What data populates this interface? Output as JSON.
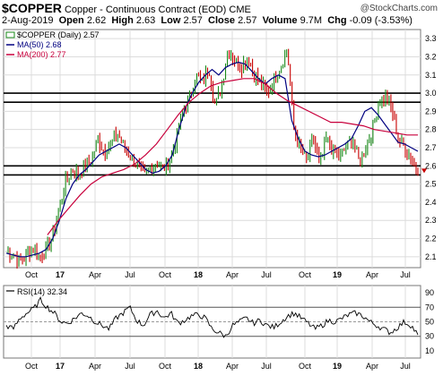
{
  "header": {
    "symbol": "$COPPER",
    "name": "Copper - Continuous Contract (EOD)",
    "exchange": "CME",
    "date": "2-Aug-2019",
    "open_label": "Open",
    "open": "2.62",
    "high_label": "High",
    "high": "2.63",
    "low_label": "Low",
    "low": "2.57",
    "close_label": "Close",
    "close": "2.57",
    "volume_label": "Volume",
    "volume": "9.7M",
    "chg_label": "Chg",
    "chg": "-0.09 (-3.53%)",
    "chg_arrow": "▼"
  },
  "brand": "@StockCharts.com",
  "colors": {
    "price": "#1a8a1a",
    "down": "#c80000",
    "ma50": "#000080",
    "ma200": "#c8003c",
    "grid": "#dcdcdc",
    "hline": "#000000"
  },
  "chart_data": [
    {
      "type": "line",
      "panel": "price",
      "legend": [
        "$COPPER (Daily) 2.57",
        "MA(50) 2.68",
        "MA(200) 2.77"
      ],
      "legend_placement": "top-left",
      "y_axis_side": "right",
      "ylim": [
        2.04,
        3.35
      ],
      "yticks": [
        2.1,
        2.2,
        2.3,
        2.4,
        2.5,
        2.6,
        2.7,
        2.8,
        2.9,
        3.0,
        3.1,
        3.2,
        3.3
      ],
      "x_tick_labels": [
        "Oct",
        "17",
        "Apr",
        "Jul",
        "Oct",
        "18",
        "Apr",
        "Jul",
        "Oct",
        "19",
        "Apr",
        "Jul"
      ],
      "bold_x_ticks": [
        "17",
        "18",
        "19"
      ],
      "grid": true,
      "horizontal_lines": [
        3.0,
        2.95,
        2.6,
        2.55
      ],
      "series": [
        {
          "name": "$COPPER (Daily)",
          "style": "ohlc",
          "values": [
            2.13,
            2.12,
            2.08,
            2.1,
            2.15,
            2.1,
            2.13,
            2.2,
            2.35,
            2.5,
            2.58,
            2.55,
            2.6,
            2.63,
            2.75,
            2.68,
            2.72,
            2.78,
            2.7,
            2.65,
            2.6,
            2.55,
            2.58,
            2.62,
            2.58,
            2.62,
            2.75,
            2.9,
            2.95,
            3.1,
            3.05,
            3.15,
            2.92,
            3.05,
            3.25,
            3.18,
            3.15,
            3.2,
            3.1,
            3.05,
            3.0,
            3.08,
            3.15,
            3.25,
            2.8,
            2.7,
            2.62,
            2.75,
            2.6,
            2.75,
            2.68,
            2.65,
            2.7,
            2.75,
            2.62,
            2.7,
            2.8,
            2.95,
            2.98,
            2.9,
            2.75,
            2.7,
            2.65,
            2.57
          ]
        },
        {
          "name": "MA(50)",
          "values": [
            2.12,
            2.11,
            2.1,
            2.1,
            2.11,
            2.12,
            2.14,
            2.2,
            2.3,
            2.42,
            2.5,
            2.55,
            2.58,
            2.62,
            2.66,
            2.68,
            2.7,
            2.72,
            2.7,
            2.66,
            2.62,
            2.58,
            2.56,
            2.57,
            2.6,
            2.66,
            2.8,
            2.92,
            3.0,
            3.06,
            3.1,
            3.13,
            3.1,
            3.14,
            3.16,
            3.17,
            3.16,
            3.12,
            3.08,
            3.05,
            3.08,
            3.1,
            3.08,
            2.85,
            2.75,
            2.68,
            2.66,
            2.65,
            2.66,
            2.68,
            2.7,
            2.72,
            2.75,
            2.82,
            2.9,
            2.92,
            2.88,
            2.83,
            2.78,
            2.73,
            2.72,
            2.7,
            2.68
          ]
        },
        {
          "name": "MA(200)",
          "values": [
            2.22,
            2.3,
            2.37,
            2.44,
            2.5,
            2.54,
            2.56,
            2.58,
            2.61,
            2.66,
            2.72,
            2.8,
            2.88,
            2.95,
            3.0,
            3.04,
            3.06,
            3.07,
            3.08,
            3.08,
            3.05,
            3.0,
            2.96,
            2.93,
            2.9,
            2.87,
            2.84,
            2.84,
            2.83,
            2.82,
            2.8,
            2.79,
            2.78,
            2.77,
            2.77
          ]
        }
      ]
    },
    {
      "type": "line",
      "panel": "indicator",
      "legend": [
        "RSI(14) 32.34"
      ],
      "ylim": [
        0,
        100
      ],
      "yticks": [
        10,
        30,
        50,
        70,
        90
      ],
      "reference_lines": [
        30,
        50,
        70
      ],
      "x_tick_labels": [
        "Oct",
        "17",
        "Apr",
        "Jul",
        "Oct",
        "18",
        "Apr",
        "Jul",
        "Oct",
        "19",
        "Apr",
        "Jul"
      ],
      "series": [
        {
          "name": "RSI(14)",
          "values": [
            45,
            40,
            55,
            62,
            68,
            80,
            70,
            62,
            50,
            48,
            55,
            62,
            58,
            50,
            45,
            40,
            55,
            62,
            70,
            52,
            45,
            60,
            65,
            55,
            62,
            48,
            52,
            58,
            60,
            55,
            40,
            35,
            30,
            45,
            50,
            55,
            48,
            52,
            45,
            42,
            50,
            58,
            62,
            55,
            48,
            40,
            45,
            52,
            50,
            55,
            60,
            62,
            58,
            50,
            45,
            40,
            35,
            42,
            50,
            45,
            32
          ]
        }
      ]
    }
  ]
}
